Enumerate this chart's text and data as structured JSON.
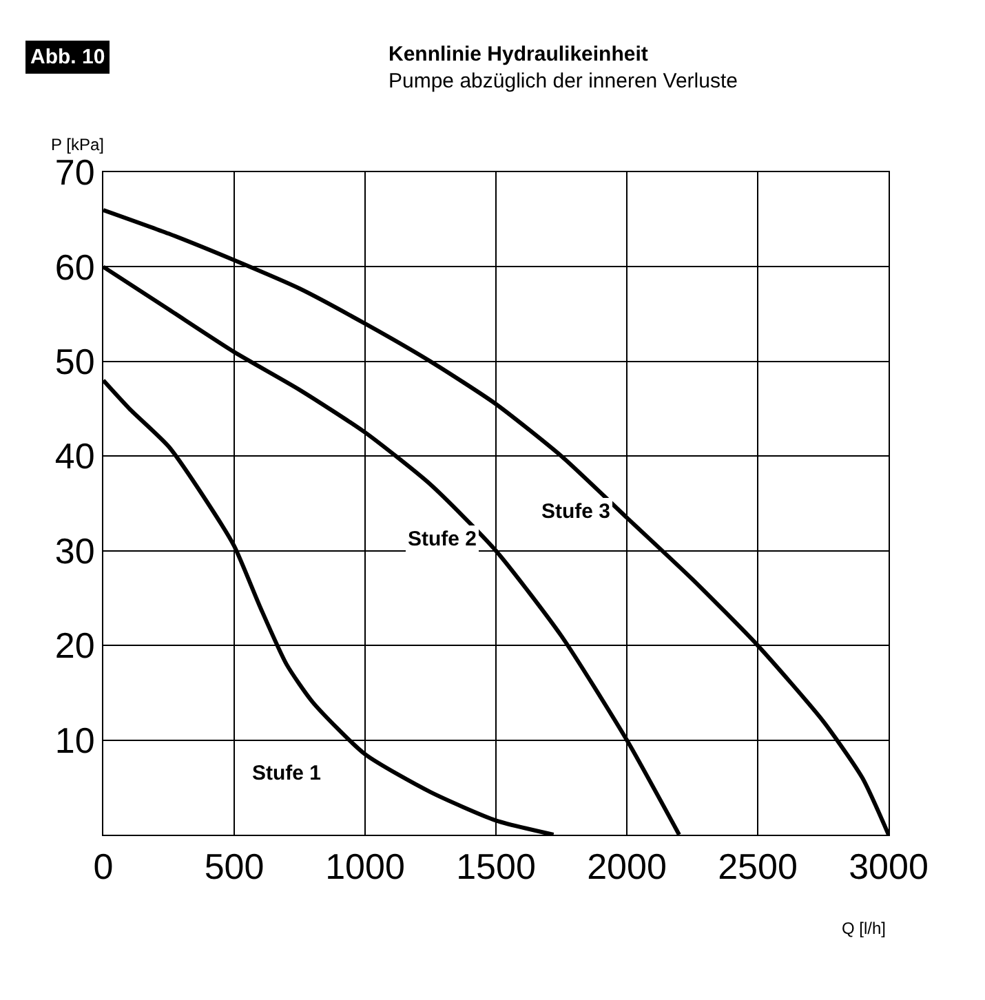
{
  "chart_data": {
    "type": "line",
    "title": "Kennlinie Hydraulikeinheit",
    "subtitle": "Pumpe abzüglich der inneren Verluste",
    "xlabel": "Q [l/h]",
    "ylabel": "P [kPa]",
    "series": [
      {
        "name": "Stufe 1",
        "color": "#000000",
        "x": [
          0,
          100,
          250,
          400,
          500,
          600,
          700,
          800,
          1000,
          1250,
          1500,
          1720
        ],
        "values": [
          48,
          45,
          41,
          35,
          30.5,
          24,
          18,
          14,
          8.5,
          4.5,
          1.5,
          0
        ]
      },
      {
        "name": "Stufe 2",
        "color": "#000000",
        "x": [
          0,
          250,
          500,
          750,
          1000,
          1250,
          1500,
          1750,
          2000,
          2200
        ],
        "values": [
          60,
          55.5,
          51,
          47,
          42.5,
          37,
          30,
          21,
          10,
          0
        ]
      },
      {
        "name": "Stufe 3",
        "color": "#000000",
        "x": [
          0,
          250,
          500,
          750,
          1000,
          1250,
          1500,
          1750,
          2000,
          2250,
          2500,
          2750,
          2900,
          3000
        ],
        "values": [
          66,
          63.5,
          60.7,
          57.7,
          54,
          50,
          45.5,
          40,
          33.5,
          27,
          20,
          12,
          6,
          0
        ]
      }
    ],
    "annotations": [
      "Abb. 10"
    ],
    "xlim": [
      0,
      3000
    ],
    "ylim": [
      0,
      70
    ],
    "xticks": [
      0,
      500,
      1000,
      1500,
      2000,
      2500,
      3000
    ],
    "yticks": [
      10,
      20,
      30,
      40,
      50,
      60,
      70
    ],
    "grid": true,
    "legend": false,
    "marker": "none",
    "line_style": "solid"
  }
}
